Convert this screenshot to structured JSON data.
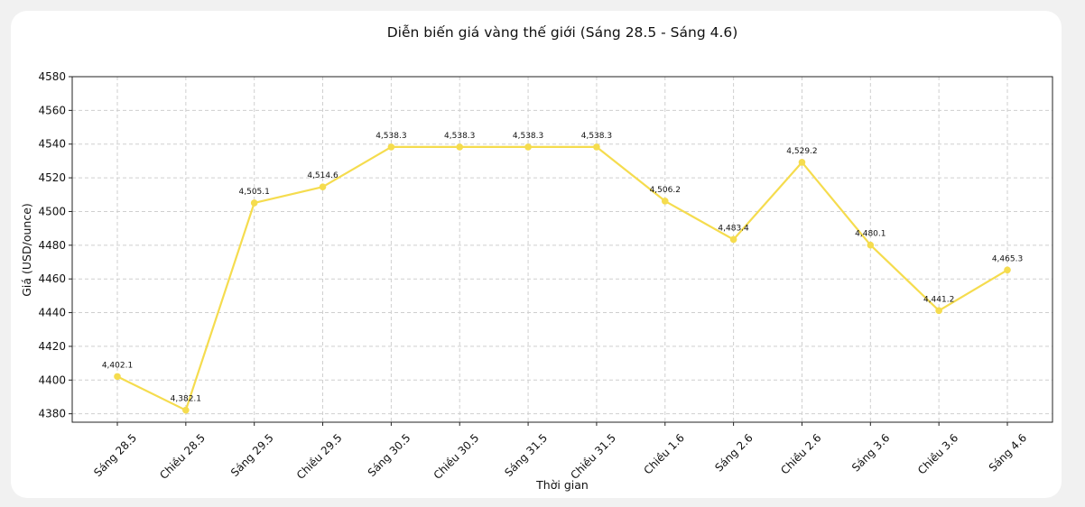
{
  "chart_data": {
    "type": "line",
    "title": "Diễn biến giá vàng thế giới (Sáng 28.5 - Sáng 4.6)",
    "xlabel": "Thời gian",
    "ylabel": "Giá (USD/ounce)",
    "categories": [
      "Sáng 28.5",
      "Chiều 28.5",
      "Sáng 29.5",
      "Chiều 29.5",
      "Sáng 30.5",
      "Chiều 30.5",
      "Sáng 31.5",
      "Chiều 31.5",
      "Chiều 1.6",
      "Sáng 2.6",
      "Chiều 2.6",
      "Sáng 3.6",
      "Chiều 3.6",
      "Sáng 4.6"
    ],
    "series": [
      {
        "values": [
          4402.1,
          4382.1,
          4505.1,
          4514.6,
          4538.3,
          4538.3,
          4538.3,
          4538.3,
          4506.2,
          4483.4,
          4529.2,
          4480.1,
          4441.2,
          4465.3
        ],
        "data_labels": [
          "4,402.1",
          "4,382.1",
          "4,505.1",
          "4,514.6",
          "4,538.3",
          "4,538.3",
          "4,538.3",
          "4,538.3",
          "4,506.2",
          "4,483.4",
          "4,529.2",
          "4,480.1",
          "4,441.2",
          "4,465.3"
        ],
        "color": "#f5dc4e"
      }
    ],
    "ylim": [
      4375,
      4580
    ],
    "yticks": [
      "4380",
      "4400",
      "4420",
      "4440",
      "4460",
      "4480",
      "4500",
      "4520",
      "4540",
      "4560",
      "4580"
    ],
    "grid": true,
    "legend": "none"
  }
}
